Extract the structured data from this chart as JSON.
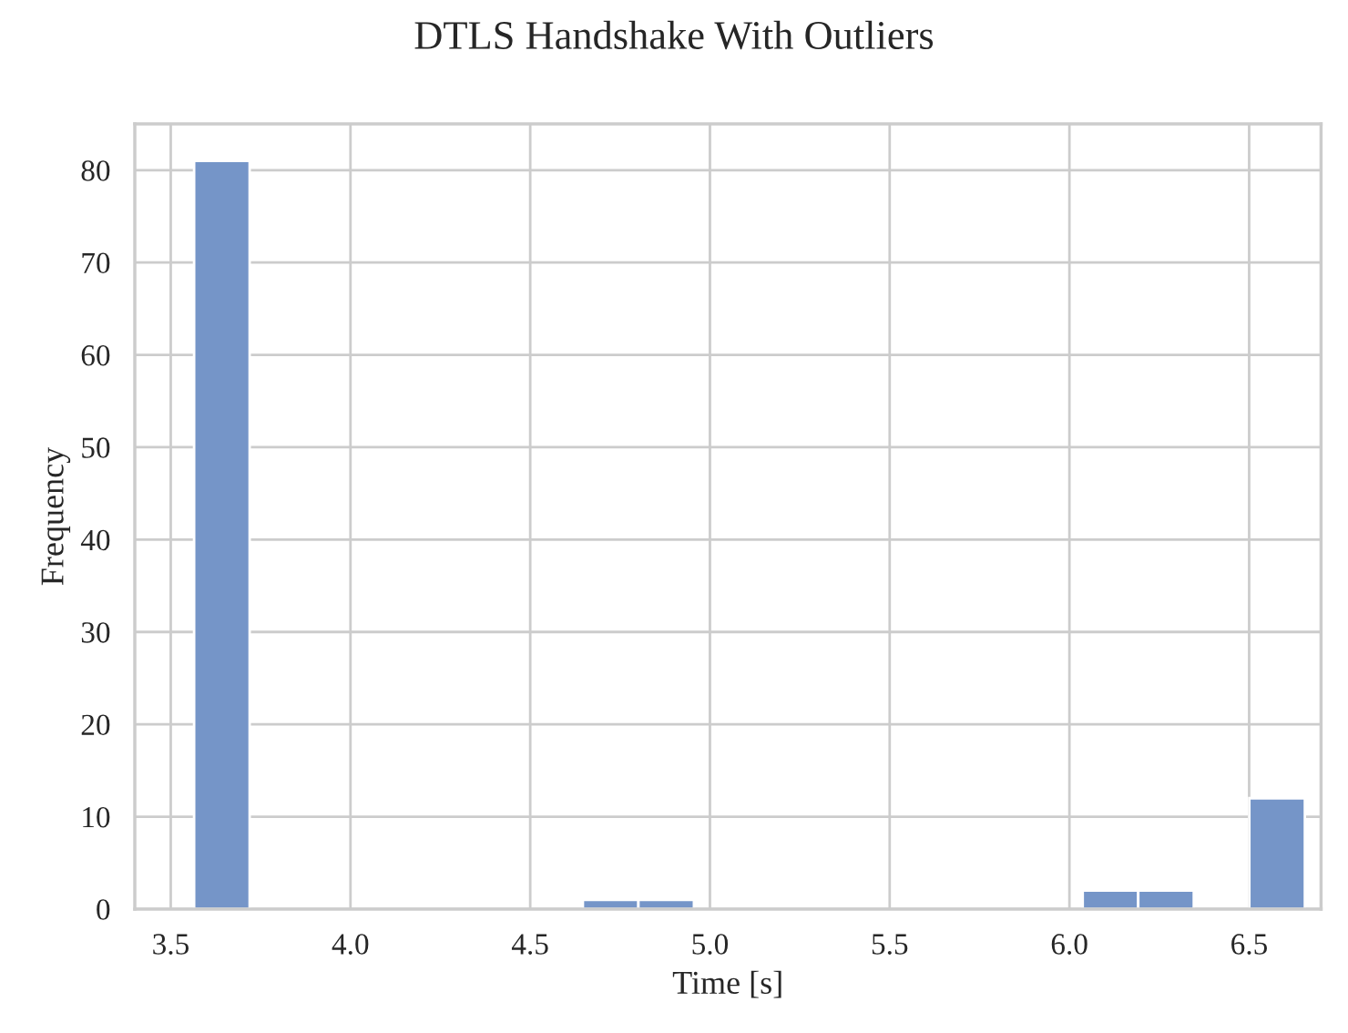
{
  "chart_data": {
    "type": "histogram",
    "title": "DTLS Handshake With Outliers",
    "xlabel": "Time [s]",
    "ylabel": "Frequency",
    "bins": [
      3.565,
      3.7195,
      3.874,
      4.0285,
      4.183,
      4.3375,
      4.492,
      4.6465,
      4.801,
      4.9555,
      5.11,
      5.2645,
      5.419,
      5.5735,
      5.728,
      5.8825,
      6.037,
      6.1915,
      6.346,
      6.5005,
      6.655
    ],
    "values": [
      81,
      0,
      0,
      0,
      0,
      0,
      0,
      1,
      1,
      0,
      0,
      0,
      0,
      0,
      0,
      0,
      2,
      2,
      0,
      12
    ],
    "color": "#7595c8",
    "xlim": [
      3.4,
      6.7
    ],
    "xticks": [
      3.5,
      {
        "value": 4,
        "label": "4.0"
      },
      4.5,
      {
        "value": 5,
        "label": "5.0"
      },
      5.5,
      {
        "value": 6,
        "label": "6.0"
      },
      6.5
    ],
    "ylim": [
      0,
      85
    ],
    "yticks": [
      0,
      10,
      20,
      30,
      40,
      50,
      60,
      70,
      80
    ],
    "grid": true
  }
}
